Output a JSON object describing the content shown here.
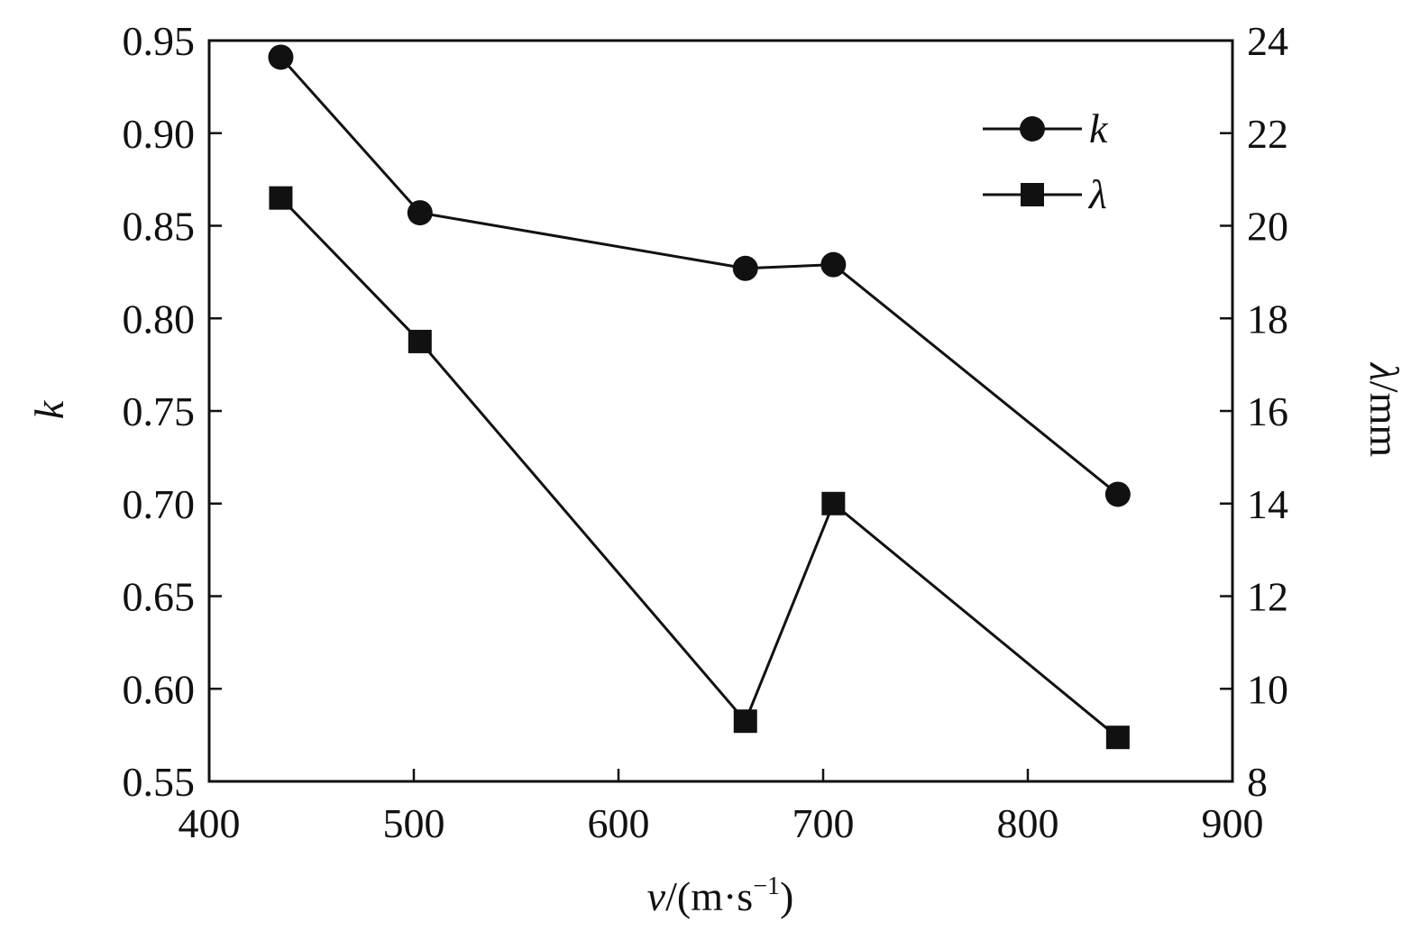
{
  "chart_data": {
    "type": "line",
    "x_axis": {
      "label_var": "v",
      "label_unit": "/(m·s",
      "label_sup": "−1",
      "label_close": ")",
      "lim": [
        400,
        900
      ],
      "ticks": [
        400,
        500,
        600,
        700,
        800,
        900
      ],
      "tick_labels": [
        "400",
        "500",
        "600",
        "700",
        "800",
        "900"
      ]
    },
    "y_left": {
      "label": "k",
      "lim": [
        0.55,
        0.95
      ],
      "ticks": [
        0.55,
        0.6,
        0.65,
        0.7,
        0.75,
        0.8,
        0.85,
        0.9,
        0.95
      ],
      "tick_labels": [
        "0.55",
        "0.60",
        "0.65",
        "0.70",
        "0.75",
        "0.80",
        "0.85",
        "0.90",
        "0.95"
      ]
    },
    "y_right": {
      "label_var": "λ",
      "label_unit": "/mm",
      "lim": [
        8,
        24
      ],
      "ticks": [
        8,
        10,
        12,
        14,
        16,
        18,
        20,
        22,
        24
      ],
      "tick_labels": [
        "8",
        "10",
        "12",
        "14",
        "16",
        "18",
        "20",
        "22",
        "24"
      ]
    },
    "series": [
      {
        "name": "k",
        "axis": "left",
        "marker": "circle",
        "color": "#111111",
        "x": [
          435,
          503,
          662,
          705,
          844
        ],
        "y": [
          0.941,
          0.857,
          0.827,
          0.829,
          0.705
        ]
      },
      {
        "name": "λ",
        "axis": "right",
        "marker": "square",
        "color": "#111111",
        "x": [
          435,
          503,
          662,
          705,
          844
        ],
        "y": [
          20.6,
          17.5,
          9.3,
          14.0,
          8.95
        ]
      }
    ],
    "legend": {
      "position": "top-right"
    },
    "grid": false
  }
}
